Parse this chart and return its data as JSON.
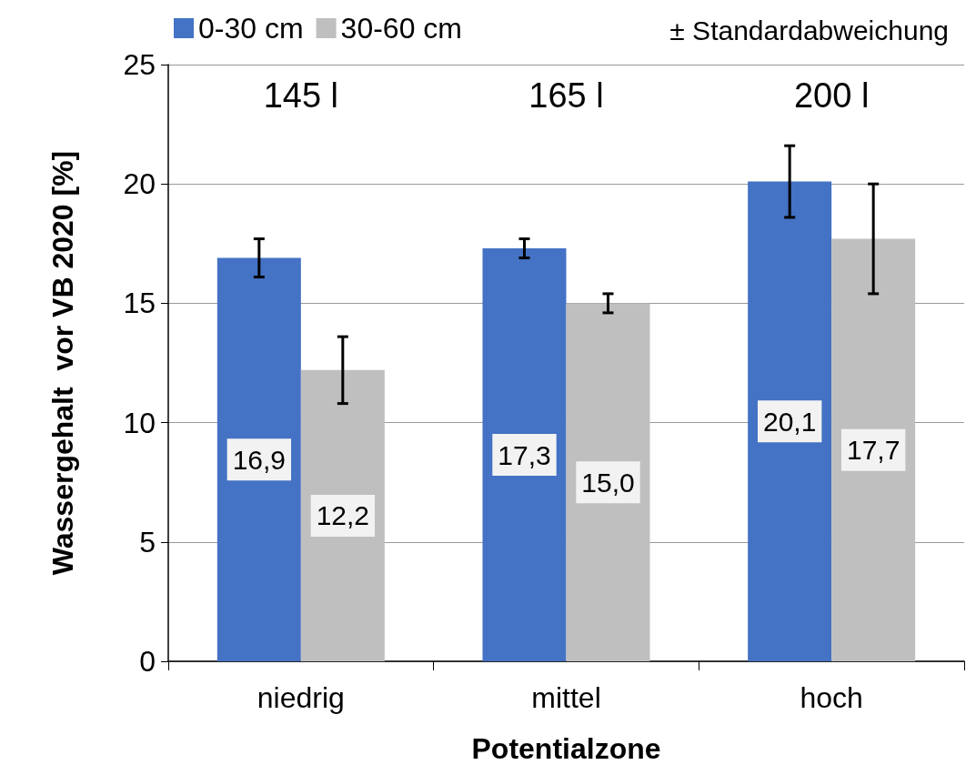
{
  "chart_data": {
    "type": "bar",
    "xlabel": "Potentialzone",
    "ylabel": "Wassergehalt  vor VB 2020 [%]",
    "categories": [
      "niedrig",
      "mittel",
      "hoch"
    ],
    "series": [
      {
        "name": "0-30 cm",
        "color": "#4472c4",
        "values": [
          16.9,
          17.3,
          20.1
        ],
        "value_labels": [
          "16,9",
          "17,3",
          "20,1"
        ],
        "errors": [
          0.8,
          0.4,
          1.5
        ]
      },
      {
        "name": "30-60 cm",
        "color": "#bfbfbf",
        "values": [
          12.2,
          15.0,
          17.7
        ],
        "value_labels": [
          "12,2",
          "15,0",
          "17,7"
        ],
        "errors": [
          1.4,
          0.4,
          2.3
        ]
      }
    ],
    "ylim": [
      0,
      25
    ],
    "yticks": [
      0,
      5,
      10,
      15,
      20,
      25
    ],
    "grid": "y",
    "legend": "top",
    "annotations": [
      "145 l",
      "165 l",
      "200 l",
      "± Standardabweichung"
    ]
  }
}
